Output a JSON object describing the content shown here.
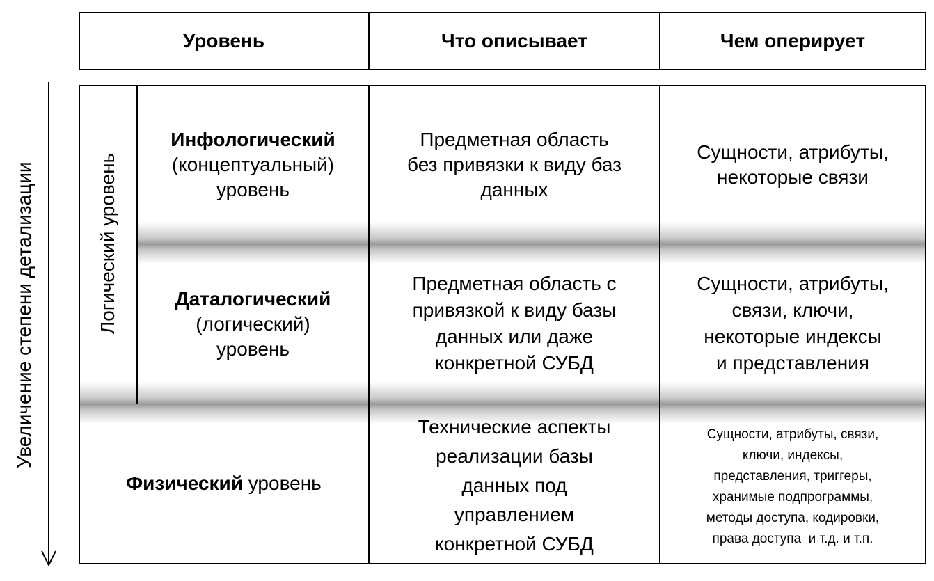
{
  "header": {
    "col1": "Уровень",
    "col2": "Что описывает",
    "col3": "Чем оперирует"
  },
  "axis_label": "Увеличение степени детализации",
  "group_label": "Логический уровень",
  "rows": [
    {
      "level_bold": "Инфологический",
      "level_rest": [
        "(концептуальный)",
        "уровень"
      ],
      "describes": [
        "Предметная область",
        "без привязки к виду баз",
        "данных"
      ],
      "operates": [
        "Сущности, атрибуты,",
        "некоторые связи"
      ]
    },
    {
      "level_bold": "Даталогический",
      "level_rest": [
        "(логический)",
        "уровень"
      ],
      "describes": [
        "Предметная область с",
        "привязкой к виду базы",
        "данных или даже",
        "конкретной СУБД"
      ],
      "operates": [
        "Сущности, атрибуты,",
        "связи, ключи,",
        "некоторые индексы",
        "и представления"
      ]
    },
    {
      "level_bold": "Физический",
      "level_tail": " уровень",
      "describes": [
        "Технические аспекты",
        "реализации базы",
        "данных под",
        "управлением",
        "конкретной СУБД"
      ],
      "operates": [
        "Сущности, атрибуты, связи,",
        "ключи, индексы,",
        "представления, триггеры,",
        "хранимые подпрограммы,",
        "методы доступа, кодировки,",
        "права доступа  и т.д. и т.п."
      ]
    }
  ]
}
